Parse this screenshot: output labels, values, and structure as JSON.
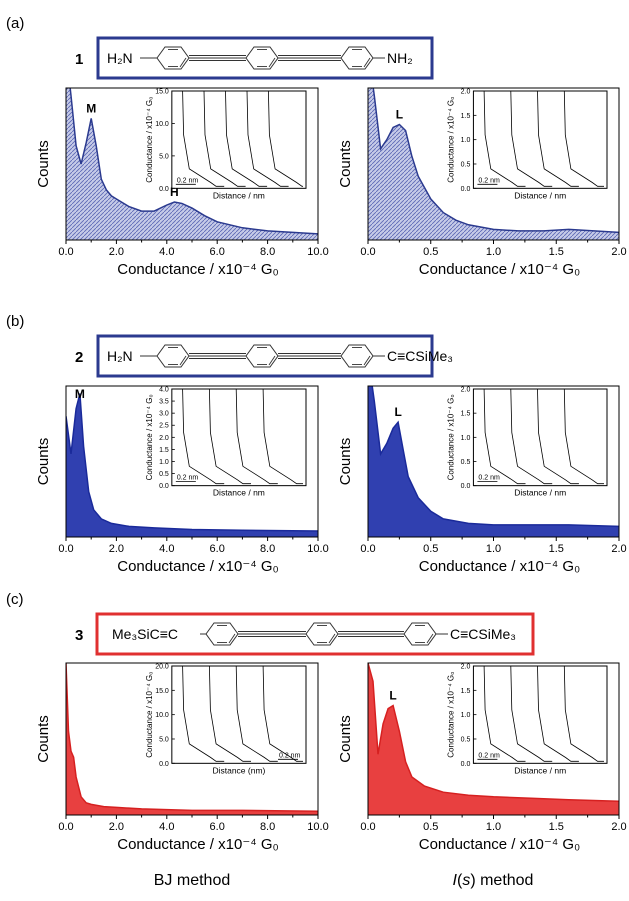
{
  "figure": {
    "bottom_labels": {
      "left": "BJ method",
      "right_pre": "I",
      "right_paren_open": "(",
      "right_s": "s",
      "right_post": ") method"
    }
  },
  "panels": [
    {
      "letter": "(a)",
      "number": "1",
      "box_color": "#2b3a8f",
      "left_group": "H₂N",
      "right_group": "NH₂"
    },
    {
      "letter": "(b)",
      "number": "2",
      "box_color": "#2b3a8f",
      "left_group": "H₂N",
      "right_group": "C≡CSiMe₃"
    },
    {
      "letter": "(c)",
      "number": "3",
      "box_color": "#e03030",
      "left_group": "Me₃SiC≡C",
      "right_group": "C≡CSiMe₃"
    }
  ],
  "axis_text": {
    "ylabel": "Counts",
    "xlabel": "Conductance / x10⁻⁴ G₀",
    "inset_ylabel": "Conductance / x10⁻⁴ G₀",
    "inset_xlabel": "Distance / nm",
    "inset_xlabel_c": "Distance (nm)",
    "scale_bar": "0.2 nm"
  },
  "chart_data": [
    {
      "id": "a-left",
      "type": "area",
      "color": "#2b3a8f",
      "fill": "#b8bde0",
      "hatched": true,
      "xlim": [
        0,
        10
      ],
      "xticks": [
        0.0,
        2.0,
        4.0,
        6.0,
        8.0,
        10.0
      ],
      "tick_labels": [
        "0.0",
        "2.0",
        "4.0",
        "6.0",
        "8.0",
        "10.0"
      ],
      "peaks": [
        {
          "label": "M",
          "x": 1.0
        },
        {
          "label": "H",
          "x": 4.3
        }
      ],
      "x": [
        0,
        0.2,
        0.4,
        0.6,
        0.8,
        1.0,
        1.2,
        1.4,
        1.6,
        1.8,
        2.0,
        2.5,
        3.0,
        3.5,
        4.0,
        4.3,
        4.6,
        5.0,
        5.5,
        6.0,
        7.0,
        8.0,
        9.0,
        10.0
      ],
      "y": [
        1.25,
        0.95,
        0.62,
        0.5,
        0.64,
        0.8,
        0.62,
        0.4,
        0.33,
        0.29,
        0.27,
        0.22,
        0.19,
        0.19,
        0.23,
        0.25,
        0.24,
        0.21,
        0.16,
        0.12,
        0.08,
        0.06,
        0.05,
        0.04
      ],
      "inset": {
        "ylim": [
          0,
          15
        ],
        "yticks": [
          0,
          5,
          10,
          15
        ],
        "tick_labels": [
          "0.0",
          "5.0",
          "10.0",
          "15.0"
        ],
        "traces": 5,
        "xlabel_key": "inset_xlabel",
        "bar_pos": "left"
      }
    },
    {
      "id": "a-right",
      "type": "area",
      "color": "#2b3a8f",
      "fill": "#b8bde0",
      "hatched": true,
      "xlim": [
        0,
        2
      ],
      "xticks": [
        0.0,
        0.5,
        1.0,
        1.5,
        2.0
      ],
      "tick_labels": [
        "0.0",
        "0.5",
        "1.0",
        "1.5",
        "2.0"
      ],
      "peaks": [
        {
          "label": "L",
          "x": 0.25
        }
      ],
      "x": [
        0,
        0.05,
        0.1,
        0.15,
        0.2,
        0.25,
        0.3,
        0.35,
        0.4,
        0.5,
        0.6,
        0.7,
        0.8,
        1.0,
        1.2,
        1.4,
        1.6,
        1.8,
        2.0
      ],
      "y": [
        1.25,
        0.95,
        0.6,
        0.66,
        0.74,
        0.76,
        0.72,
        0.55,
        0.42,
        0.27,
        0.18,
        0.13,
        0.1,
        0.07,
        0.06,
        0.06,
        0.07,
        0.06,
        0.05
      ],
      "inset": {
        "ylim": [
          0,
          2
        ],
        "yticks": [
          0,
          0.5,
          1.0,
          1.5,
          2.0
        ],
        "tick_labels": [
          "0.0",
          "0.5",
          "1.0",
          "1.5",
          "2.0"
        ],
        "traces": 4,
        "xlabel_key": "inset_xlabel",
        "bar_pos": "left"
      }
    },
    {
      "id": "b-left",
      "type": "area",
      "color": "#1a2a9a",
      "fill": "#3040b0",
      "hatched": false,
      "xlim": [
        0,
        10
      ],
      "xticks": [
        0.0,
        2.0,
        4.0,
        6.0,
        8.0,
        10.0
      ],
      "tick_labels": [
        "0.0",
        "2.0",
        "4.0",
        "6.0",
        "8.0",
        "10.0"
      ],
      "peaks": [
        {
          "label": "M",
          "x": 0.55
        }
      ],
      "x": [
        0,
        0.2,
        0.4,
        0.55,
        0.7,
        0.9,
        1.1,
        1.4,
        1.8,
        2.5,
        3.5,
        5.0,
        7.0,
        10.0
      ],
      "y": [
        0.8,
        0.55,
        0.85,
        0.95,
        0.6,
        0.3,
        0.18,
        0.12,
        0.09,
        0.07,
        0.06,
        0.05,
        0.045,
        0.04
      ],
      "inset": {
        "ylim": [
          0,
          4
        ],
        "yticks": [
          0,
          0.5,
          1,
          1.5,
          2,
          2.5,
          3,
          3.5,
          4
        ],
        "tick_labels": [
          "0.0",
          "0.5",
          "1.0",
          "1.5",
          "2.0",
          "2.5",
          "3.0",
          "3.5",
          "4.0"
        ],
        "traces": 4,
        "xlabel_key": "inset_xlabel",
        "bar_pos": "left"
      }
    },
    {
      "id": "b-right",
      "type": "area",
      "color": "#1a2a9a",
      "fill": "#3040b0",
      "hatched": false,
      "xlim": [
        0,
        2
      ],
      "xticks": [
        0.0,
        0.5,
        1.0,
        1.5,
        2.0
      ],
      "tick_labels": [
        "0.0",
        "0.5",
        "1.0",
        "1.5",
        "2.0"
      ],
      "peaks": [
        {
          "label": "L",
          "x": 0.24
        }
      ],
      "x": [
        0,
        0.05,
        0.1,
        0.15,
        0.2,
        0.24,
        0.28,
        0.32,
        0.4,
        0.5,
        0.6,
        0.8,
        1.0,
        1.3,
        1.6,
        2.0
      ],
      "y": [
        1.2,
        0.9,
        0.55,
        0.62,
        0.72,
        0.76,
        0.58,
        0.4,
        0.26,
        0.17,
        0.12,
        0.09,
        0.08,
        0.08,
        0.08,
        0.07
      ],
      "inset": {
        "ylim": [
          0,
          2
        ],
        "yticks": [
          0,
          0.5,
          1.0,
          1.5,
          2.0
        ],
        "tick_labels": [
          "0.0",
          "0.5",
          "1.0",
          "1.5",
          "2.0"
        ],
        "traces": 4,
        "xlabel_key": "inset_xlabel",
        "bar_pos": "left"
      }
    },
    {
      "id": "c-left",
      "type": "area",
      "color": "#d62020",
      "fill": "#e84040",
      "hatched": false,
      "xlim": [
        0,
        10
      ],
      "xticks": [
        0.0,
        2.0,
        4.0,
        6.0,
        8.0,
        10.0
      ],
      "tick_labels": [
        "0.0",
        "2.0",
        "4.0",
        "6.0",
        "8.0",
        "10.0"
      ],
      "peaks": [],
      "x": [
        0,
        0.1,
        0.2,
        0.3,
        0.4,
        0.6,
        0.8,
        1.0,
        1.5,
        2.0,
        3.0,
        5.0,
        7.0,
        10.0
      ],
      "y": [
        1.0,
        0.55,
        0.42,
        0.38,
        0.25,
        0.12,
        0.08,
        0.07,
        0.055,
        0.05,
        0.04,
        0.03,
        0.03,
        0.025
      ],
      "inset": {
        "ylim": [
          0,
          20
        ],
        "yticks": [
          0,
          5,
          10,
          15,
          20
        ],
        "tick_labels": [
          "0.0",
          "5.0",
          "10.0",
          "15.0",
          "20.0"
        ],
        "traces": 4,
        "xlabel_key": "inset_xlabel_c",
        "bar_pos": "right"
      }
    },
    {
      "id": "c-right",
      "type": "area",
      "color": "#d62020",
      "fill": "#e84040",
      "hatched": false,
      "xlim": [
        0,
        2
      ],
      "xticks": [
        0.0,
        0.5,
        1.0,
        1.5,
        2.0
      ],
      "tick_labels": [
        "0.0",
        "0.5",
        "1.0",
        "1.5",
        "2.0"
      ],
      "peaks": [
        {
          "label": "L",
          "x": 0.2
        }
      ],
      "x": [
        0,
        0.04,
        0.08,
        0.12,
        0.16,
        0.2,
        0.25,
        0.3,
        0.35,
        0.45,
        0.6,
        0.8,
        1.0,
        1.3,
        1.6,
        2.0
      ],
      "y": [
        1.0,
        0.88,
        0.4,
        0.6,
        0.7,
        0.72,
        0.55,
        0.35,
        0.25,
        0.19,
        0.15,
        0.13,
        0.12,
        0.11,
        0.1,
        0.09
      ],
      "inset": {
        "ylim": [
          0,
          2
        ],
        "yticks": [
          0,
          0.5,
          1.0,
          1.5,
          2.0
        ],
        "tick_labels": [
          "0.0",
          "0.5",
          "1.0",
          "1.5",
          "2.0"
        ],
        "traces": 4,
        "xlabel_key": "inset_xlabel",
        "bar_pos": "left"
      }
    }
  ]
}
